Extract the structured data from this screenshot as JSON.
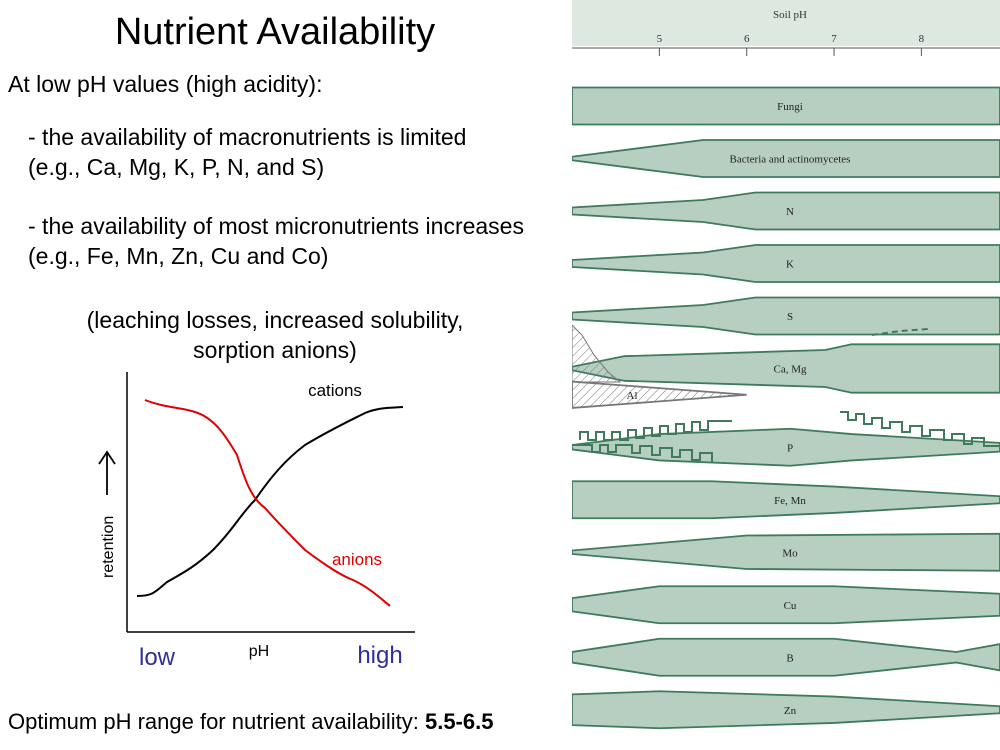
{
  "slide": {
    "title": "Nutrient Availability",
    "intro": "At low pH values (high acidity):",
    "bullet1_line1": "- the availability of macronutrients is limited",
    "bullet1_line2": "(e.g., Ca, Mg, K, P, N, and S)",
    "bullet2_line1": "- the availability of most micronutrients increases",
    "bullet2_line2": "(e.g., Fe, Mn, Zn, Cu and Co)",
    "note_line1": "(leaching losses, increased solubility,",
    "note_line2": "sorption anions)",
    "footer_text": "Optimum pH range for nutrient availability: ",
    "footer_value": "5.5-6.5"
  },
  "retention_chart": {
    "ylabel": "retention",
    "xlabel": "pH",
    "x_low": "low",
    "x_high": "high",
    "cations_label": "cations",
    "anions_label": "anions",
    "colors": {
      "cations": "#000000",
      "anions": "#e00000",
      "low_high": "#2e2e9c"
    }
  },
  "chart_data": {
    "type": "area",
    "title": "Soil pH",
    "x_ticks": [
      "5",
      "6",
      "7",
      "8"
    ],
    "xlim": [
      4.0,
      8.9
    ],
    "categories": [
      "Fungi",
      "Bacteria and actinomycetes",
      "N",
      "K",
      "S",
      "Ca, Mg",
      "Al",
      "P",
      "Fe, Mn",
      "Mo",
      "Cu",
      "B",
      "Zn"
    ],
    "colors": {
      "band": "#b7cfc1",
      "outline": "#3f7a5d",
      "header": "#dde8e1"
    },
    "series": [
      {
        "name": "Fungi",
        "x": [
          4.0,
          8.9
        ],
        "half_width": [
          0.42,
          0.42
        ]
      },
      {
        "name": "Bacteria and actinomycetes",
        "x": [
          4.0,
          5.5,
          8.9
        ],
        "half_width": [
          0.04,
          0.42,
          0.42
        ]
      },
      {
        "name": "N",
        "x": [
          4.0,
          5.5,
          6.1,
          8.9
        ],
        "half_width": [
          0.08,
          0.25,
          0.42,
          0.42
        ]
      },
      {
        "name": "K",
        "x": [
          4.0,
          5.5,
          6.1,
          8.9
        ],
        "half_width": [
          0.08,
          0.25,
          0.42,
          0.42
        ]
      },
      {
        "name": "S",
        "x": [
          4.0,
          5.5,
          6.1,
          8.9
        ],
        "half_width": [
          0.08,
          0.25,
          0.42,
          0.42
        ]
      },
      {
        "name": "Ca, Mg",
        "x": [
          4.0,
          4.6,
          6.9,
          7.2,
          8.9
        ],
        "half_width": [
          0.04,
          0.28,
          0.42,
          0.55,
          0.55
        ]
      },
      {
        "name": "Al",
        "x": [
          4.0,
          5.0,
          6.0
        ],
        "half_width": [
          0.3,
          0.15,
          0.0
        ]
      },
      {
        "name": "P",
        "x": [
          4.0,
          5.0,
          6.5,
          7.2,
          8.9
        ],
        "half_width": [
          0.05,
          0.3,
          0.42,
          0.3,
          0.1
        ]
      },
      {
        "name": "Fe, Mn",
        "x": [
          4.0,
          5.6,
          7.0,
          8.9
        ],
        "half_width": [
          0.42,
          0.42,
          0.3,
          0.08
        ]
      },
      {
        "name": "Mo",
        "x": [
          4.0,
          6.0,
          8.9
        ],
        "half_width": [
          0.04,
          0.38,
          0.42
        ]
      },
      {
        "name": "Cu",
        "x": [
          4.0,
          5.0,
          7.0,
          8.9
        ],
        "half_width": [
          0.15,
          0.42,
          0.42,
          0.25
        ]
      },
      {
        "name": "B",
        "x": [
          4.0,
          5.0,
          7.0,
          8.4,
          8.9
        ],
        "half_width": [
          0.12,
          0.42,
          0.42,
          0.12,
          0.3
        ]
      },
      {
        "name": "Zn",
        "x": [
          4.0,
          5.0,
          7.0,
          8.9
        ],
        "half_width": [
          0.35,
          0.42,
          0.3,
          0.08
        ]
      }
    ]
  }
}
